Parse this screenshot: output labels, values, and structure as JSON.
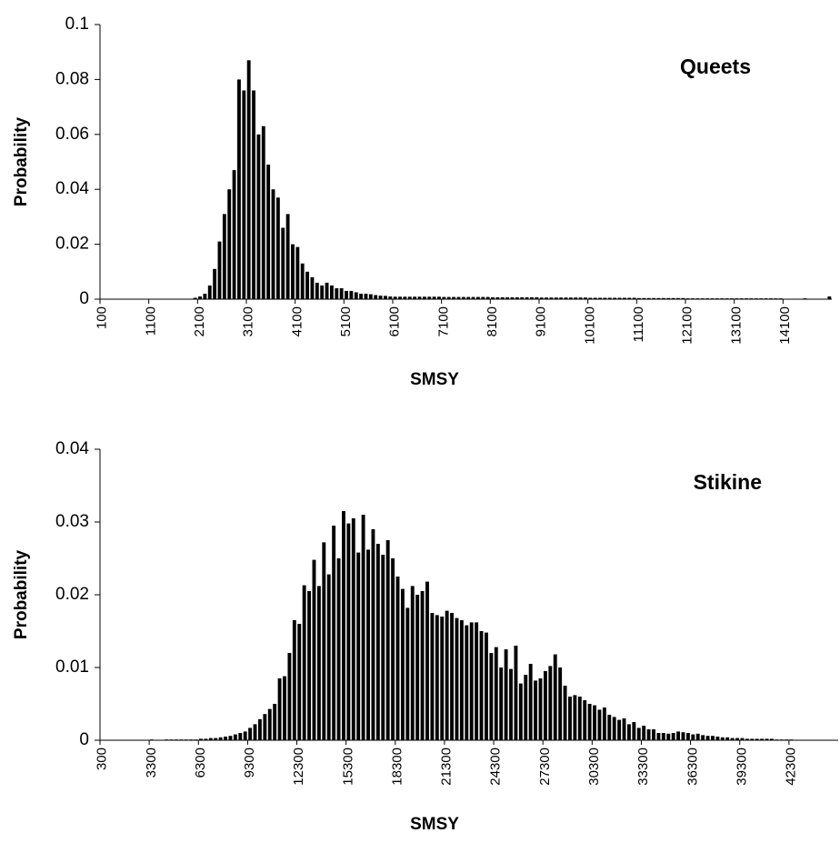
{
  "chart_data": [
    {
      "type": "bar",
      "annotation": "Queets",
      "xlabel": "SMSY",
      "ylabel": "Probability",
      "color": "#000000",
      "ylim": [
        0,
        0.1
      ],
      "yticks": [
        0,
        0.02,
        0.04,
        0.06,
        0.08,
        0.1
      ],
      "categories": [
        "100",
        null,
        null,
        null,
        null,
        null,
        null,
        null,
        null,
        null,
        "1100",
        null,
        null,
        null,
        null,
        null,
        null,
        null,
        null,
        null,
        "2100",
        null,
        null,
        null,
        null,
        null,
        null,
        null,
        null,
        null,
        "3100",
        null,
        null,
        null,
        null,
        null,
        null,
        null,
        null,
        null,
        "4100",
        null,
        null,
        null,
        null,
        null,
        null,
        null,
        null,
        null,
        "5100",
        null,
        null,
        null,
        null,
        null,
        null,
        null,
        null,
        null,
        "6100",
        null,
        null,
        null,
        null,
        null,
        null,
        null,
        null,
        null,
        "7100",
        null,
        null,
        null,
        null,
        null,
        null,
        null,
        null,
        null,
        "8100",
        null,
        null,
        null,
        null,
        null,
        null,
        null,
        null,
        null,
        "9100",
        null,
        null,
        null,
        null,
        null,
        null,
        null,
        null,
        null,
        "10100",
        null,
        null,
        null,
        null,
        null,
        null,
        null,
        null,
        null,
        "11100",
        null,
        null,
        null,
        null,
        null,
        null,
        null,
        null,
        null,
        "12100",
        null,
        null,
        null,
        null,
        null,
        null,
        null,
        null,
        null,
        "13100",
        null,
        null,
        null,
        null,
        null,
        null,
        null,
        null,
        null,
        "14100",
        null,
        null,
        null,
        null,
        null,
        null,
        null,
        null,
        null
      ],
      "values": [
        0,
        0,
        0,
        0,
        0,
        0,
        0,
        0,
        0,
        0,
        0,
        0,
        0,
        0,
        0,
        0,
        0,
        0,
        0,
        0.0005,
        0.001,
        0.002,
        0.005,
        0.011,
        0.021,
        0.031,
        0.04,
        0.047,
        0.08,
        0.076,
        0.087,
        0.076,
        0.06,
        0.063,
        0.049,
        0.04,
        0.037,
        0.026,
        0.031,
        0.02,
        0.019,
        0.013,
        0.01,
        0.008,
        0.006,
        0.005,
        0.006,
        0.005,
        0.004,
        0.004,
        0.003,
        0.003,
        0.0025,
        0.002,
        0.002,
        0.0018,
        0.0015,
        0.0013,
        0.0012,
        0.001,
        0.0009,
        0.0009,
        0.0009,
        0.0009,
        0.0009,
        0.0009,
        0.0009,
        0.0009,
        0.0009,
        0.0009,
        0.0008,
        0.0008,
        0.0008,
        0.0008,
        0.0008,
        0.0008,
        0.0008,
        0.0008,
        0.0008,
        0.0008,
        0.0007,
        0.0007,
        0.0007,
        0.0007,
        0.0007,
        0.0007,
        0.0007,
        0.0007,
        0.0007,
        0.0007,
        0.0006,
        0.0006,
        0.0006,
        0.0006,
        0.0006,
        0.0006,
        0.0006,
        0.0006,
        0.0006,
        0.0006,
        0.0005,
        0.0005,
        0.0005,
        0.0005,
        0.0005,
        0.0005,
        0.0005,
        0.0005,
        0.0005,
        0.0005,
        0.0004,
        0.0004,
        0.0004,
        0.0004,
        0.0004,
        0.0004,
        0.0004,
        0.0004,
        0.0004,
        0.0004,
        0.0003,
        0.0003,
        0.0003,
        0.0003,
        0.0003,
        0.0003,
        0.0003,
        0.0003,
        0.0003,
        0.0003,
        0.0003,
        0.0003,
        0.0003,
        0.0003,
        0.0003,
        0.0003,
        0.0003,
        0.0003,
        0.0003,
        0.0003,
        0,
        0,
        0,
        0,
        0.0003,
        0,
        0,
        0,
        0,
        0.001
      ]
    },
    {
      "type": "bar",
      "annotation": "Stikine",
      "xlabel": "SMSY",
      "ylabel": "Probability",
      "color": "#000000",
      "ylim": [
        0,
        0.04
      ],
      "yticks": [
        0,
        0.01,
        0.02,
        0.03,
        0.04
      ],
      "categories": [
        "300",
        null,
        null,
        null,
        null,
        null,
        null,
        null,
        null,
        null,
        "3300",
        null,
        null,
        null,
        null,
        null,
        null,
        null,
        null,
        null,
        "6300",
        null,
        null,
        null,
        null,
        null,
        null,
        null,
        null,
        null,
        "9300",
        null,
        null,
        null,
        null,
        null,
        null,
        null,
        null,
        null,
        "12300",
        null,
        null,
        null,
        null,
        null,
        null,
        null,
        null,
        null,
        "15300",
        null,
        null,
        null,
        null,
        null,
        null,
        null,
        null,
        null,
        "18300",
        null,
        null,
        null,
        null,
        null,
        null,
        null,
        null,
        null,
        "21300",
        null,
        null,
        null,
        null,
        null,
        null,
        null,
        null,
        null,
        "24300",
        null,
        null,
        null,
        null,
        null,
        null,
        null,
        null,
        null,
        "27300",
        null,
        null,
        null,
        null,
        null,
        null,
        null,
        null,
        null,
        "30300",
        null,
        null,
        null,
        null,
        null,
        null,
        null,
        null,
        null,
        "33300",
        null,
        null,
        null,
        null,
        null,
        null,
        null,
        null,
        null,
        "36300",
        null,
        null,
        null,
        null,
        null,
        null,
        null,
        null,
        null,
        "39300",
        null,
        null,
        null,
        null,
        null,
        null,
        null,
        null,
        null,
        "42300",
        null,
        null,
        null,
        null,
        null,
        null,
        null,
        null,
        null
      ],
      "values": [
        0,
        0,
        0,
        0,
        0,
        0,
        0,
        0,
        0,
        0,
        0.0001,
        0,
        0,
        0.0001,
        0.0001,
        0.0001,
        0.0001,
        0.0001,
        0.0001,
        0.0001,
        0.0002,
        0.0002,
        0.0003,
        0.0003,
        0.0004,
        0.0005,
        0.0006,
        0.0008,
        0.001,
        0.0012,
        0.0017,
        0.0022,
        0.0029,
        0.0036,
        0.0043,
        0.005,
        0.0085,
        0.0088,
        0.012,
        0.0165,
        0.016,
        0.0213,
        0.0205,
        0.0248,
        0.0212,
        0.0272,
        0.0228,
        0.0295,
        0.025,
        0.0315,
        0.0298,
        0.0305,
        0.0258,
        0.031,
        0.0262,
        0.029,
        0.027,
        0.0255,
        0.0275,
        0.025,
        0.0225,
        0.0208,
        0.0182,
        0.0212,
        0.02,
        0.0205,
        0.0218,
        0.0175,
        0.0172,
        0.017,
        0.0178,
        0.0175,
        0.0168,
        0.0165,
        0.0158,
        0.0162,
        0.0162,
        0.015,
        0.0148,
        0.012,
        0.0128,
        0.01,
        0.0125,
        0.0098,
        0.013,
        0.0078,
        0.009,
        0.0105,
        0.0082,
        0.0085,
        0.0095,
        0.0102,
        0.0118,
        0.01,
        0.0075,
        0.006,
        0.0062,
        0.006,
        0.0055,
        0.005,
        0.0048,
        0.0042,
        0.0045,
        0.0035,
        0.0032,
        0.0028,
        0.003,
        0.0022,
        0.0025,
        0.0017,
        0.002,
        0.0015,
        0.0015,
        0.001,
        0.001,
        0.0009,
        0.001,
        0.0012,
        0.0011,
        0.001,
        0.0008,
        0.0009,
        0.0007,
        0.0006,
        0.0006,
        0.0005,
        0.0004,
        0.0004,
        0.0003,
        0.0003,
        0.0003,
        0.0002,
        0.0002,
        0.0002,
        0.0002,
        0.0002,
        0.0002,
        0.0001,
        0.0001,
        0.0001,
        0.0001,
        0,
        0,
        0,
        0,
        0,
        0,
        0,
        0,
        0
      ]
    }
  ]
}
